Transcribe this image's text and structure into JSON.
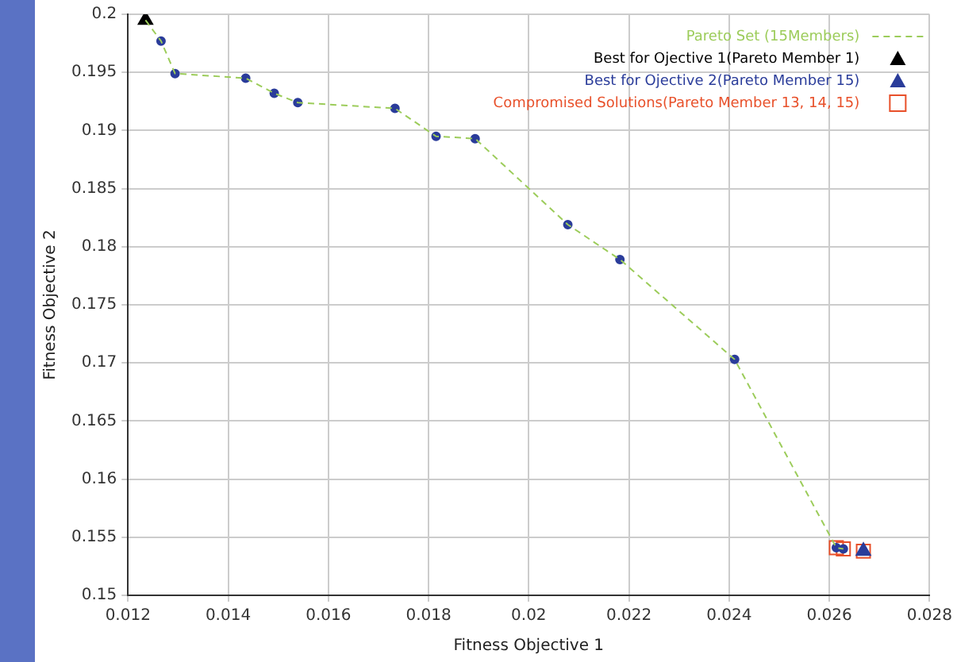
{
  "chart_data": {
    "type": "scatter",
    "xlabel": "Fitness Objective 1",
    "ylabel": "Fitness Objective 2",
    "xlim": [
      0.012,
      0.028
    ],
    "xticks": [
      0.012,
      0.014,
      0.016,
      0.018,
      0.02,
      0.022,
      0.024,
      0.026,
      0.028
    ],
    "ylim": [
      0.15,
      0.2
    ],
    "yticks": [
      0.15,
      0.155,
      0.16,
      0.165,
      0.17,
      0.175,
      0.18,
      0.185,
      0.19,
      0.195,
      0.2
    ],
    "grid": true,
    "legend": "top right",
    "series": [
      {
        "name": "Pareto Set (15Members)",
        "type": "line",
        "color": "#9ccc5a",
        "line_style": "dashed",
        "marker": "none",
        "x": [
          0.01235,
          0.01266,
          0.01294,
          0.01435,
          0.01492,
          0.01539,
          0.01733,
          0.01815,
          0.01893,
          0.02078,
          0.02182,
          0.02411,
          0.02614,
          0.02628
        ],
        "values": [
          0.1995,
          0.1977,
          0.1949,
          0.1945,
          0.1932,
          0.1924,
          0.1919,
          0.1895,
          0.1893,
          0.1819,
          0.1789,
          0.1703,
          0.1541,
          0.154
        ]
      },
      {
        "type": "scatter",
        "color": "#2a3c9a",
        "marker": "circle",
        "x": [
          0.01266,
          0.01294,
          0.01435,
          0.01492,
          0.01539,
          0.01733,
          0.01815,
          0.01893,
          0.02078,
          0.02182,
          0.02411,
          0.02614,
          0.02628
        ],
        "values": [
          0.1977,
          0.1949,
          0.1945,
          0.1932,
          0.1924,
          0.1919,
          0.1895,
          0.1893,
          0.1819,
          0.1789,
          0.1703,
          0.1541,
          0.154
        ]
      },
      {
        "name": "Best for Ojective 1(Pareto Member 1)",
        "type": "scatter",
        "color": "#000000",
        "marker": "triangle",
        "x": [
          0.01235
        ],
        "values": [
          0.1995
        ]
      },
      {
        "name": "Best for Ojective 2(Pareto Member 15)",
        "type": "scatter",
        "color": "#2a3c9a",
        "marker": "triangle",
        "x": [
          0.02668
        ],
        "values": [
          0.1538
        ]
      },
      {
        "name": "Compromised Solutions(Pareto Member 13, 14, 15)",
        "type": "scatter",
        "color": "#e8502a",
        "marker": "square",
        "x": [
          0.02614,
          0.02628,
          0.02668
        ],
        "values": [
          0.1541,
          0.154,
          0.1538
        ]
      }
    ]
  }
}
